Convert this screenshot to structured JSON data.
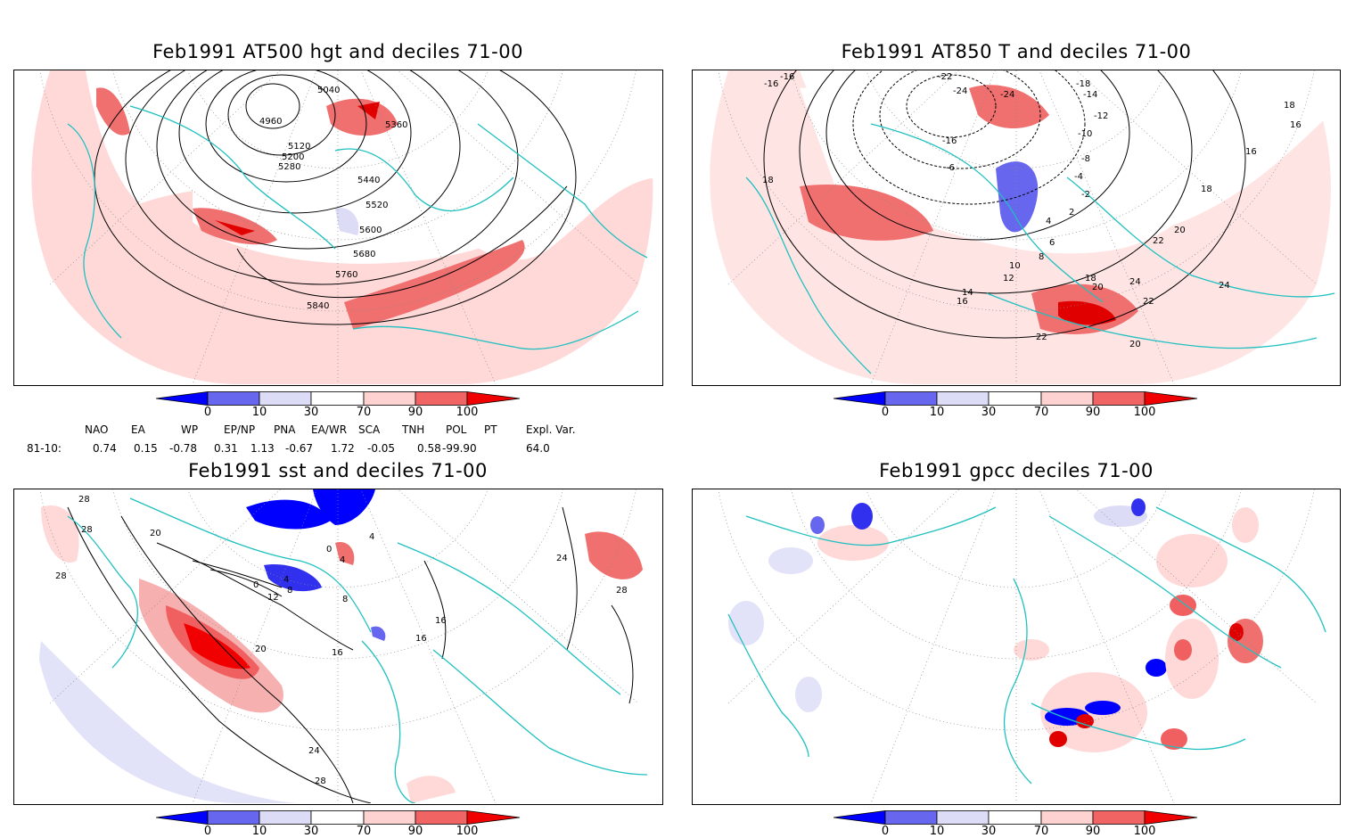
{
  "panels": [
    {
      "title": "Feb1991 AT500 hgt and deciles 71-00",
      "contour_labels": [
        "5040",
        "4960",
        "5360",
        "5120",
        "5200",
        "5280",
        "5440",
        "5520",
        "5600",
        "5680",
        "5760",
        "5840"
      ]
    },
    {
      "title": "Feb1991 AT850 T and deciles 71-00",
      "contour_labels": [
        "-16",
        "-16",
        "-22",
        "-24",
        "-24",
        "-18",
        "-14",
        "-12",
        "-10",
        "-16",
        "-8",
        "-6",
        "-4",
        "-2",
        "2",
        "4",
        "6",
        "8",
        "10",
        "12",
        "14",
        "16",
        "18",
        "18",
        "16",
        "16",
        "18",
        "20",
        "22",
        "24",
        "24",
        "22",
        "20",
        "22",
        "18",
        "20"
      ]
    },
    {
      "title": "Feb1991 sst and deciles 71-00",
      "contour_labels": [
        "28",
        "28",
        "28",
        "20",
        "0",
        "4",
        "8",
        "12",
        "4",
        "8",
        "0",
        "16",
        "20",
        "24",
        "28",
        "16",
        "16",
        "24",
        "28",
        "4"
      ]
    },
    {
      "title": "Feb1991 gpcc deciles 71-00",
      "contour_labels": []
    }
  ],
  "colorbar": {
    "labels": [
      "0",
      "10",
      "30",
      "70",
      "90",
      "100"
    ],
    "colors": [
      "#0000ff",
      "#6666ee",
      "#dcdcf7",
      "#ffffff",
      "#ffd2d2",
      "#f06464",
      "#f00000"
    ]
  },
  "indices": {
    "names": [
      "NAO",
      "EA",
      "WP",
      "EP/NP",
      "PNA",
      "EA/WR",
      "SCA",
      "TNH",
      "POL",
      "PT",
      "Expl. Var."
    ],
    "row_label": "81-10:",
    "values": [
      "0.74",
      "0.15",
      "-0.78",
      "0.31",
      "1.13",
      "-0.67",
      "1.72",
      "-0.05",
      "0.58",
      "-99.90",
      "64.0"
    ]
  },
  "colors": {
    "coast": "#20c0c0",
    "grid": "#888888",
    "contour": "#000000"
  }
}
